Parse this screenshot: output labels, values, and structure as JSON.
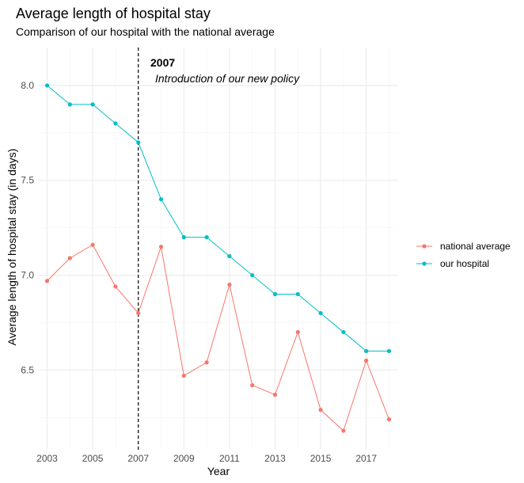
{
  "chart_data": {
    "type": "line",
    "title": "Average length of hospital stay",
    "subtitle": "Comparison of our hospital with the national average",
    "xlabel": "Year",
    "ylabel": "Average length of hospital stay (in days)",
    "xlim": [
      2002.6,
      2018.4
    ],
    "ylim": [
      6.08,
      8.2
    ],
    "x_ticks": [
      2003,
      2005,
      2007,
      2009,
      2011,
      2013,
      2015,
      2017
    ],
    "x_tick_labels": [
      "2003",
      "2005",
      "2007",
      "2009",
      "2011",
      "2013",
      "2015",
      "2017"
    ],
    "y_ticks": [
      6.5,
      7.0,
      7.5,
      8.0
    ],
    "y_tick_labels": [
      "6.5",
      "7.0",
      "7.5",
      "8.0"
    ],
    "x": [
      2003,
      2004,
      2005,
      2006,
      2007,
      2008,
      2009,
      2010,
      2011,
      2012,
      2013,
      2014,
      2015,
      2016,
      2017,
      2018
    ],
    "series": [
      {
        "name": "national average",
        "color": "#F8766D",
        "values": [
          6.97,
          7.09,
          7.16,
          6.94,
          6.8,
          7.15,
          6.47,
          6.54,
          6.95,
          6.42,
          6.37,
          6.7,
          6.29,
          6.18,
          6.55,
          6.24
        ]
      },
      {
        "name": "our hospital",
        "color": "#00BFC4",
        "values": [
          8.0,
          7.9,
          7.9,
          7.8,
          7.7,
          7.4,
          7.2,
          7.2,
          7.1,
          7.0,
          6.9,
          6.9,
          6.8,
          6.7,
          6.6,
          6.6
        ]
      }
    ],
    "annotation": {
      "x": 2007,
      "label_bold": "2007",
      "label_italic": "Introduction of our new policy",
      "line_style": "dashed"
    },
    "legend_position": "right",
    "grid": true
  }
}
